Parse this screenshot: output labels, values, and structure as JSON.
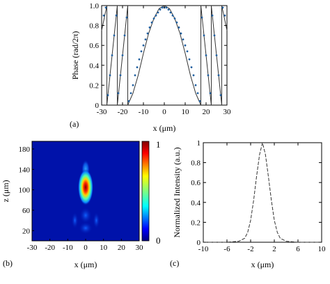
{
  "panels": {
    "a": "(a)",
    "b": "(b)",
    "c": "(c)"
  },
  "chart_data": [
    {
      "id": "a",
      "type": "line",
      "xlabel": "x (μm)",
      "ylabel": "Phase (rad/2π)",
      "xlim": [
        -30,
        30
      ],
      "ylim": [
        0,
        1
      ],
      "xticks": [
        "-30",
        "-20",
        "-10",
        "0",
        "10",
        "20",
        "30"
      ],
      "yticks": [
        "0",
        "0.2",
        "0.4",
        "0.6",
        "0.8",
        "1.0"
      ],
      "series": [
        {
          "style": "solid",
          "color": "#333333",
          "x": [
            -30,
            -27.5,
            -27.5,
            -22.5,
            -22.5,
            -17.5,
            -17.5,
            -15,
            -12.5,
            -10,
            -7.5,
            -5,
            -2.5,
            0,
            2.5,
            5,
            7.5,
            10,
            12.5,
            15,
            17.5,
            17.5,
            22.5,
            22.5,
            27.5,
            27.5,
            30
          ],
          "y": [
            0.75,
            1.0,
            0.0,
            1.0,
            0.0,
            1.0,
            0.0,
            0.12,
            0.3,
            0.52,
            0.72,
            0.87,
            0.97,
            1.0,
            0.97,
            0.87,
            0.72,
            0.52,
            0.3,
            0.12,
            0.0,
            1.0,
            0.0,
            1.0,
            0.0,
            1.0,
            0.75
          ]
        },
        {
          "style": "dotted",
          "color": "#1f5fa0",
          "x": [
            -29,
            -28,
            -27,
            -26,
            -25,
            -24,
            -23,
            -22,
            -21,
            -20,
            -19,
            -18,
            -17,
            -16,
            -15,
            -14,
            -13,
            -12,
            -11,
            -10,
            -9,
            -8,
            -7,
            -6,
            -5,
            -4,
            -3,
            -2,
            -1,
            0,
            1,
            2,
            3,
            4,
            5,
            6,
            7,
            8,
            9,
            10,
            11,
            12,
            13,
            14,
            15,
            16,
            17,
            18,
            19,
            20,
            21,
            22,
            23,
            24,
            25,
            26,
            27,
            28,
            29
          ],
          "y": [
            0.9,
            0.98,
            0.1,
            0.3,
            0.5,
            0.7,
            0.9,
            0.12,
            0.3,
            0.5,
            0.7,
            0.88,
            0.04,
            0.12,
            0.2,
            0.3,
            0.38,
            0.46,
            0.54,
            0.6,
            0.66,
            0.72,
            0.78,
            0.83,
            0.87,
            0.9,
            0.93,
            0.96,
            0.98,
            0.98,
            0.98,
            0.96,
            0.93,
            0.9,
            0.87,
            0.83,
            0.78,
            0.72,
            0.66,
            0.6,
            0.54,
            0.46,
            0.38,
            0.3,
            0.2,
            0.12,
            0.04,
            0.88,
            0.7,
            0.5,
            0.3,
            0.12,
            0.9,
            0.7,
            0.5,
            0.3,
            0.1,
            0.98,
            0.9
          ]
        }
      ]
    },
    {
      "id": "b",
      "type": "heatmap",
      "xlabel": "x (μm)",
      "ylabel": "z (μm)",
      "xlim": [
        -30,
        30
      ],
      "ylim": [
        0,
        195
      ],
      "xticks": [
        "-30",
        "-20",
        "-10",
        "0",
        "10",
        "20",
        "30"
      ],
      "yticks": [
        "20",
        "60",
        "100",
        "140",
        "180"
      ],
      "colorbar": {
        "min_label": "0",
        "max_label": "1",
        "colormap": "jet"
      },
      "features": [
        {
          "x": 0,
          "z": 105,
          "value": 1.0
        },
        {
          "x": 0,
          "z": 140,
          "value": 0.35
        },
        {
          "x": 0,
          "z": 50,
          "value": 0.25
        },
        {
          "x": 0,
          "z": 25,
          "value": 0.2
        }
      ]
    },
    {
      "id": "c",
      "type": "line",
      "xlabel": "x (μm)",
      "ylabel": "Normalized Intensity (a.u.)",
      "xlim": [
        -10,
        10
      ],
      "ylim": [
        0,
        1
      ],
      "xticks": [
        "-10",
        "-6",
        "-2",
        "2",
        "6",
        "10"
      ],
      "yticks": [
        "0",
        "0.2",
        "0.4",
        "0.6",
        "0.8",
        "1"
      ],
      "series": [
        {
          "style": "dashed",
          "color": "#333333",
          "x": [
            -10,
            -6,
            -4,
            -3,
            -2.5,
            -2,
            -1.5,
            -1,
            -0.5,
            0,
            0.5,
            1,
            1.5,
            2,
            2.5,
            3,
            4,
            6,
            10
          ],
          "y": [
            0,
            0,
            0.01,
            0.04,
            0.1,
            0.22,
            0.42,
            0.66,
            0.88,
            1.0,
            0.88,
            0.66,
            0.42,
            0.22,
            0.1,
            0.04,
            0.01,
            0,
            0
          ]
        }
      ]
    }
  ]
}
